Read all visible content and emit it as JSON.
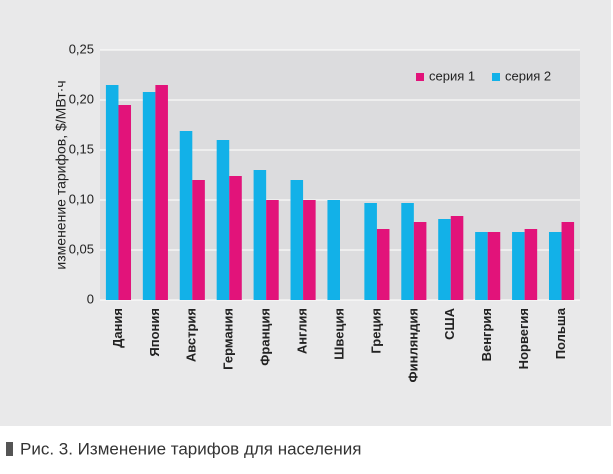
{
  "chart_data": {
    "type": "bar",
    "ylabel": "изменение тарифов, $/МВт·ч",
    "caption": "Рис. 3. Изменение тарифов для населения",
    "categories": [
      "Дания",
      "Япония",
      "Австрия",
      "Германия",
      "Франция",
      "Англия",
      "Швеция",
      "Греция",
      "Финляндия",
      "США",
      "Венгрия",
      "Норвегия",
      "Польша"
    ],
    "series": [
      {
        "name": "серия 1",
        "color": "#e2137a",
        "values": [
          0.195,
          0.215,
          0.12,
          0.124,
          0.1,
          0.1,
          null,
          0.071,
          0.078,
          0.084,
          0.068,
          0.071,
          0.078
        ]
      },
      {
        "name": "серия 2",
        "color": "#12b1e8",
        "values": [
          0.215,
          0.208,
          0.169,
          0.16,
          0.13,
          0.12,
          0.1,
          0.097,
          0.097,
          0.081,
          0.068,
          0.068,
          0.068
        ]
      }
    ],
    "ylim": [
      0,
      0.25
    ],
    "yticks": [
      0,
      {
        "value": 0.05,
        "label": "0,05"
      },
      {
        "value": 0.1,
        "label": "0,10"
      },
      {
        "value": 0.15,
        "label": "0,15"
      },
      {
        "value": 0.2,
        "label": "0,20"
      },
      {
        "value": 0.25,
        "label": "0,25"
      }
    ],
    "grid": true,
    "legend": "top-right"
  }
}
